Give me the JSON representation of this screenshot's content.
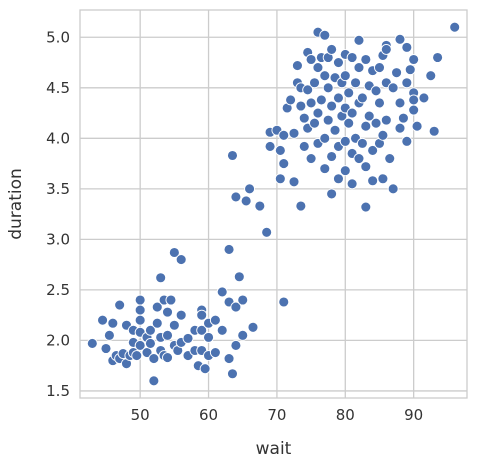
{
  "chart_data": {
    "type": "scatter",
    "xlabel": "wait",
    "ylabel": "duration",
    "xlim": [
      41.2,
      97.8
    ],
    "ylim": [
      1.43,
      5.27
    ],
    "xticks": [
      50,
      60,
      70,
      80,
      90
    ],
    "yticks": [
      1.5,
      2.0,
      2.5,
      3.0,
      3.5,
      4.0,
      4.5,
      5.0
    ],
    "grid": true,
    "point_color": "#4c72b0",
    "grid_color": "#cccccc",
    "series": [
      {
        "points": [
          [
            43,
            1.97
          ],
          [
            44.5,
            2.2
          ],
          [
            45,
            1.92
          ],
          [
            45.5,
            2.05
          ],
          [
            46,
            1.8
          ],
          [
            46,
            2.17
          ],
          [
            46.5,
            1.85
          ],
          [
            47,
            2.35
          ],
          [
            47,
            1.82
          ],
          [
            47.5,
            1.87
          ],
          [
            48,
            1.77
          ],
          [
            48,
            2.15
          ],
          [
            48.5,
            1.85
          ],
          [
            49,
            2.1
          ],
          [
            49,
            1.98
          ],
          [
            49,
            1.88
          ],
          [
            49.5,
            1.85
          ],
          [
            50,
            2.4
          ],
          [
            50,
            2.3
          ],
          [
            50,
            2.2
          ],
          [
            50,
            2.08
          ],
          [
            50,
            1.95
          ],
          [
            51,
            2.03
          ],
          [
            51,
            1.88
          ],
          [
            51.5,
            2.1
          ],
          [
            51.5,
            1.97
          ],
          [
            52,
            1.82
          ],
          [
            52,
            1.6
          ],
          [
            52.5,
            2.33
          ],
          [
            52.5,
            2.17
          ],
          [
            53,
            2.62
          ],
          [
            53,
            2.03
          ],
          [
            53,
            1.9
          ],
          [
            53.5,
            2.4
          ],
          [
            53.5,
            1.85
          ],
          [
            54,
            2.28
          ],
          [
            54,
            2.05
          ],
          [
            54,
            1.83
          ],
          [
            54.5,
            2.4
          ],
          [
            55,
            2.87
          ],
          [
            55,
            2.15
          ],
          [
            55,
            1.95
          ],
          [
            55.5,
            1.9
          ],
          [
            56,
            2.8
          ],
          [
            56,
            2.25
          ],
          [
            56,
            1.98
          ],
          [
            57,
            2.02
          ],
          [
            57,
            1.85
          ],
          [
            58,
            2.1
          ],
          [
            58,
            1.9
          ],
          [
            58.5,
            1.75
          ],
          [
            59,
            2.3
          ],
          [
            59,
            2.25
          ],
          [
            59,
            2.1
          ],
          [
            59,
            1.9
          ],
          [
            59.5,
            1.72
          ],
          [
            60,
            2.17
          ],
          [
            60,
            2.03
          ],
          [
            60,
            1.85
          ],
          [
            61,
            2.2
          ],
          [
            61,
            1.88
          ],
          [
            62,
            2.48
          ],
          [
            62,
            2.1
          ],
          [
            63,
            2.9
          ],
          [
            63,
            2.38
          ],
          [
            63,
            1.82
          ],
          [
            63.5,
            1.67
          ],
          [
            64,
            2.33
          ],
          [
            64,
            1.95
          ],
          [
            64.5,
            2.63
          ],
          [
            65,
            2.4
          ],
          [
            65,
            2.05
          ],
          [
            66.5,
            2.13
          ],
          [
            71,
            2.38
          ],
          [
            63.5,
            3.83
          ],
          [
            64,
            3.42
          ],
          [
            65.5,
            3.38
          ],
          [
            66,
            3.5
          ],
          [
            67.5,
            3.33
          ],
          [
            68.5,
            3.07
          ],
          [
            69,
            3.92
          ],
          [
            69,
            4.06
          ],
          [
            70,
            4.08
          ],
          [
            70.5,
            3.88
          ],
          [
            70.5,
            3.6
          ],
          [
            71,
            3.75
          ],
          [
            71,
            4.03
          ],
          [
            71.5,
            4.3
          ],
          [
            72,
            4.38
          ],
          [
            72.5,
            4.05
          ],
          [
            72.5,
            3.57
          ],
          [
            73,
            4.55
          ],
          [
            73,
            4.72
          ],
          [
            73.5,
            3.33
          ],
          [
            73.5,
            4.5
          ],
          [
            73.5,
            4.32
          ],
          [
            74,
            4.2
          ],
          [
            74,
            3.92
          ],
          [
            74.5,
            4.85
          ],
          [
            74.5,
            4.48
          ],
          [
            74.5,
            4.1
          ],
          [
            75,
            4.78
          ],
          [
            75,
            4.35
          ],
          [
            75,
            3.8
          ],
          [
            75.5,
            4.15
          ],
          [
            75.5,
            4.55
          ],
          [
            76,
            5.05
          ],
          [
            76,
            4.7
          ],
          [
            76,
            4.25
          ],
          [
            76,
            3.95
          ],
          [
            76.5,
            4.8
          ],
          [
            76.5,
            4.38
          ],
          [
            77,
            4.62
          ],
          [
            77,
            4.0
          ],
          [
            77,
            3.7
          ],
          [
            77,
            5.02
          ],
          [
            77.5,
            4.8
          ],
          [
            77.5,
            4.5
          ],
          [
            77.5,
            4.18
          ],
          [
            78,
            4.88
          ],
          [
            78,
            4.32
          ],
          [
            78,
            3.45
          ],
          [
            78,
            3.82
          ],
          [
            78.5,
            4.6
          ],
          [
            78.5,
            4.08
          ],
          [
            79,
            4.75
          ],
          [
            79,
            4.4
          ],
          [
            79,
            3.92
          ],
          [
            79,
            3.6
          ],
          [
            79.5,
            4.22
          ],
          [
            79.5,
            4.55
          ],
          [
            80,
            4.83
          ],
          [
            80,
            4.62
          ],
          [
            80,
            4.3
          ],
          [
            80,
            3.97
          ],
          [
            80,
            3.68
          ],
          [
            80.5,
            4.15
          ],
          [
            80.5,
            4.45
          ],
          [
            81,
            4.8
          ],
          [
            81,
            4.25
          ],
          [
            81,
            3.85
          ],
          [
            81,
            3.55
          ],
          [
            81.5,
            4.55
          ],
          [
            81.5,
            4.0
          ],
          [
            82,
            4.7
          ],
          [
            82,
            4.35
          ],
          [
            82,
            3.8
          ],
          [
            82,
            4.97
          ],
          [
            82.5,
            4.4
          ],
          [
            82.5,
            3.95
          ],
          [
            83,
            4.78
          ],
          [
            83,
            4.12
          ],
          [
            83,
            3.72
          ],
          [
            83,
            3.32
          ],
          [
            83.5,
            4.52
          ],
          [
            83.5,
            4.22
          ],
          [
            84,
            4.67
          ],
          [
            84,
            3.88
          ],
          [
            84,
            3.58
          ],
          [
            84.5,
            4.15
          ],
          [
            84.5,
            4.47
          ],
          [
            85,
            4.7
          ],
          [
            85,
            4.35
          ],
          [
            85,
            3.95
          ],
          [
            85.5,
            4.82
          ],
          [
            85.5,
            4.03
          ],
          [
            85.5,
            3.6
          ],
          [
            86,
            4.92
          ],
          [
            86,
            4.88
          ],
          [
            86,
            4.18
          ],
          [
            86,
            4.55
          ],
          [
            86.5,
            3.8
          ],
          [
            87,
            4.5
          ],
          [
            87,
            3.5
          ],
          [
            87.5,
            4.65
          ],
          [
            88,
            4.98
          ],
          [
            88,
            4.35
          ],
          [
            88,
            4.1
          ],
          [
            88.5,
            4.2
          ],
          [
            89,
            4.9
          ],
          [
            89,
            4.55
          ],
          [
            89,
            3.97
          ],
          [
            89.5,
            4.68
          ],
          [
            90,
            4.45
          ],
          [
            90,
            4.38
          ],
          [
            90,
            4.28
          ],
          [
            90,
            4.78
          ],
          [
            90.5,
            4.12
          ],
          [
            91.5,
            4.4
          ],
          [
            92.5,
            4.62
          ],
          [
            93,
            4.07
          ],
          [
            93.5,
            4.8
          ],
          [
            96,
            5.1
          ]
        ]
      }
    ]
  }
}
